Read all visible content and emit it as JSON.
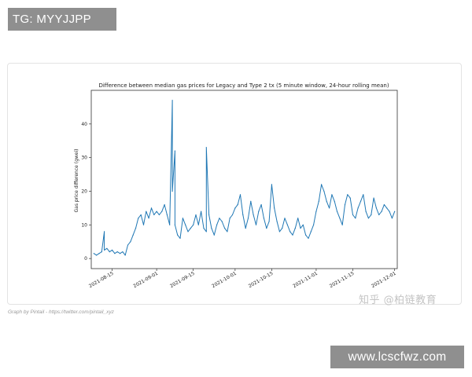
{
  "watermark_top": "TG: MYYJJPP",
  "watermark_bottom": "www.lcscfwz.com",
  "watermark_zhihu": "知乎 @柏链教育",
  "caption": "Graph by Pintail - https://twitter.com/pintail_xyz",
  "chart_data": {
    "type": "line",
    "title": "Difference between median gas prices for Legacy and Type 2 tx (5 minute window, 24-hour rolling mean)",
    "xlabel": "",
    "ylabel": "Gas price difference (gwei)",
    "xlim": [
      "2021-08-07",
      "2021-12-02"
    ],
    "ylim": [
      -3,
      50
    ],
    "yticks": [
      0,
      10,
      20,
      30,
      40
    ],
    "xticks": [
      "2021-08-15",
      "2021-09-01",
      "2021-09-15",
      "2021-10-01",
      "2021-10-15",
      "2021-11-01",
      "2021-11-15",
      "2021-12-01"
    ],
    "grid": false,
    "line_color": "#1f77b4",
    "series": [
      {
        "x": [
          "2021-08-08",
          "2021-08-09",
          "2021-08-10",
          "2021-08-11",
          "2021-08-12",
          "2021-08-12",
          "2021-08-13",
          "2021-08-14",
          "2021-08-15",
          "2021-08-16",
          "2021-08-17",
          "2021-08-18",
          "2021-08-19",
          "2021-08-20",
          "2021-08-21",
          "2021-08-22",
          "2021-08-23",
          "2021-08-24",
          "2021-08-25",
          "2021-08-26",
          "2021-08-27",
          "2021-08-28",
          "2021-08-29",
          "2021-08-30",
          "2021-08-31",
          "2021-09-01",
          "2021-09-02",
          "2021-09-03",
          "2021-09-04",
          "2021-09-05",
          "2021-09-06",
          "2021-09-07",
          "2021-09-07",
          "2021-09-08",
          "2021-09-08",
          "2021-09-09",
          "2021-09-10",
          "2021-09-11",
          "2021-09-12",
          "2021-09-13",
          "2021-09-14",
          "2021-09-15",
          "2021-09-16",
          "2021-09-17",
          "2021-09-18",
          "2021-09-19",
          "2021-09-20",
          "2021-09-20",
          "2021-09-21",
          "2021-09-22",
          "2021-09-23",
          "2021-09-24",
          "2021-09-25",
          "2021-09-26",
          "2021-09-27",
          "2021-09-28",
          "2021-09-29",
          "2021-09-30",
          "2021-10-01",
          "2021-10-02",
          "2021-10-03",
          "2021-10-04",
          "2021-10-05",
          "2021-10-06",
          "2021-10-07",
          "2021-10-08",
          "2021-10-09",
          "2021-10-10",
          "2021-10-11",
          "2021-10-12",
          "2021-10-13",
          "2021-10-14",
          "2021-10-15",
          "2021-10-16",
          "2021-10-17",
          "2021-10-18",
          "2021-10-19",
          "2021-10-20",
          "2021-10-21",
          "2021-10-22",
          "2021-10-23",
          "2021-10-24",
          "2021-10-25",
          "2021-10-26",
          "2021-10-27",
          "2021-10-28",
          "2021-10-29",
          "2021-10-30",
          "2021-10-31",
          "2021-11-01",
          "2021-11-02",
          "2021-11-03",
          "2021-11-04",
          "2021-11-05",
          "2021-11-06",
          "2021-11-07",
          "2021-11-08",
          "2021-11-09",
          "2021-11-10",
          "2021-11-11",
          "2021-11-12",
          "2021-11-13",
          "2021-11-14",
          "2021-11-15",
          "2021-11-16",
          "2021-11-17",
          "2021-11-18",
          "2021-11-19",
          "2021-11-20",
          "2021-11-21",
          "2021-11-22",
          "2021-11-23",
          "2021-11-24",
          "2021-11-25",
          "2021-11-26",
          "2021-11-27",
          "2021-11-28",
          "2021-11-29",
          "2021-11-30",
          "2021-12-01"
        ],
        "y": [
          1.5,
          1.0,
          1.5,
          2.0,
          8.0,
          2.5,
          3.0,
          2.0,
          2.5,
          1.5,
          2.0,
          1.5,
          2.0,
          1.0,
          4.0,
          5.0,
          7.0,
          9.0,
          12.0,
          13.0,
          10.0,
          14.0,
          12.0,
          15.0,
          13.0,
          14.0,
          13.0,
          14.0,
          16.0,
          13.0,
          10.0,
          47.0,
          20.0,
          32.0,
          10.0,
          7.0,
          6.0,
          12.0,
          10.0,
          8.0,
          9.0,
          10.0,
          13.0,
          10.0,
          14.0,
          9.0,
          8.0,
          33.0,
          13.0,
          9.0,
          7.0,
          10.0,
          12.0,
          11.0,
          9.0,
          8.0,
          12.0,
          13.0,
          15.0,
          16.0,
          19.0,
          13.0,
          9.0,
          12.0,
          17.0,
          13.0,
          10.0,
          14.0,
          16.0,
          12.0,
          9.0,
          11.0,
          22.0,
          15.0,
          11.0,
          8.0,
          9.0,
          12.0,
          10.0,
          8.0,
          7.0,
          9.0,
          12.0,
          9.0,
          10.0,
          7.0,
          6.0,
          8.0,
          10.0,
          14.0,
          17.0,
          22.0,
          20.0,
          17.0,
          15.0,
          19.0,
          17.0,
          14.0,
          12.0,
          10.0,
          16.0,
          19.0,
          18.0,
          13.0,
          12.0,
          15.0,
          17.0,
          19.0,
          14.0,
          12.0,
          13.0,
          18.0,
          15.0,
          13.0,
          14.0,
          16.0,
          15.0,
          14.0,
          12.0,
          14.0
        ]
      }
    ]
  }
}
